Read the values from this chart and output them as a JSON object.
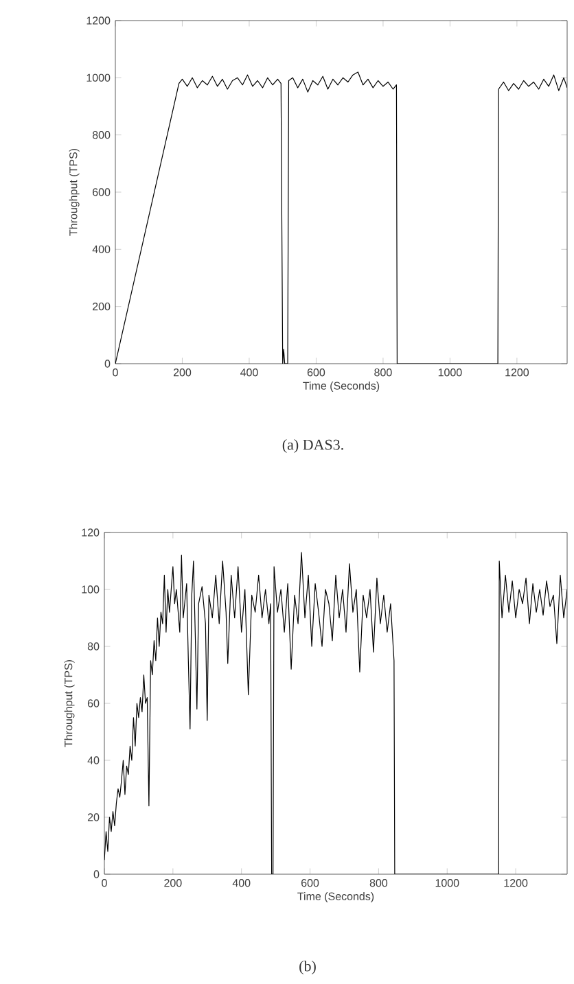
{
  "chart_data": [
    {
      "type": "line",
      "xlabel": "Time (Seconds)",
      "ylabel": "Throughput (TPS)",
      "annotations": [
        "(a)  DAS3."
      ],
      "color": "#000000",
      "xlim": [
        0,
        1350
      ],
      "ylim": [
        0,
        1200
      ],
      "xticks": [
        0,
        200,
        400,
        600,
        800,
        1000,
        1200
      ],
      "yticks": [
        0,
        200,
        400,
        600,
        800,
        1000,
        1200
      ],
      "x": [
        0,
        190,
        200,
        215,
        230,
        245,
        260,
        275,
        290,
        305,
        320,
        335,
        350,
        365,
        380,
        395,
        410,
        425,
        440,
        455,
        470,
        485,
        495,
        500,
        503,
        506,
        515,
        518,
        530,
        545,
        560,
        575,
        590,
        605,
        620,
        635,
        650,
        665,
        680,
        695,
        710,
        725,
        740,
        755,
        770,
        785,
        800,
        815,
        830,
        840,
        842,
        1143,
        1145,
        1160,
        1175,
        1190,
        1205,
        1220,
        1235,
        1250,
        1265,
        1280,
        1295,
        1310,
        1325,
        1340,
        1350
      ],
      "values": [
        0,
        980,
        995,
        970,
        1000,
        965,
        990,
        975,
        1005,
        970,
        995,
        960,
        990,
        1000,
        975,
        1010,
        970,
        990,
        965,
        1000,
        975,
        995,
        980,
        0,
        50,
        0,
        0,
        990,
        1000,
        965,
        995,
        950,
        990,
        975,
        1005,
        960,
        995,
        975,
        1000,
        985,
        1010,
        1020,
        975,
        995,
        965,
        990,
        970,
        985,
        960,
        975,
        0,
        0,
        960,
        985,
        955,
        980,
        960,
        990,
        970,
        985,
        960,
        995,
        970,
        1010,
        955,
        1000,
        965
      ]
    },
    {
      "type": "line",
      "xlabel": "Time (Seconds)",
      "ylabel": "Throughput (TPS)",
      "annotations": [
        "(b)"
      ],
      "color": "#000000",
      "xlim": [
        0,
        1350
      ],
      "ylim": [
        0,
        120
      ],
      "xticks": [
        0,
        200,
        400,
        600,
        800,
        1000,
        1200
      ],
      "yticks": [
        0,
        20,
        40,
        60,
        80,
        100,
        120
      ],
      "x": [
        0,
        5,
        10,
        15,
        20,
        25,
        30,
        35,
        40,
        45,
        50,
        55,
        60,
        65,
        70,
        75,
        80,
        85,
        90,
        95,
        100,
        105,
        110,
        115,
        120,
        125,
        130,
        135,
        140,
        145,
        150,
        155,
        160,
        165,
        170,
        175,
        180,
        185,
        190,
        200,
        205,
        210,
        220,
        225,
        230,
        240,
        245,
        250,
        255,
        260,
        265,
        270,
        275,
        285,
        295,
        300,
        305,
        315,
        325,
        335,
        345,
        355,
        360,
        370,
        380,
        390,
        400,
        410,
        420,
        430,
        440,
        450,
        460,
        470,
        480,
        485,
        488,
        492,
        495,
        505,
        515,
        525,
        535,
        545,
        555,
        565,
        575,
        585,
        595,
        605,
        615,
        625,
        635,
        645,
        655,
        665,
        675,
        685,
        695,
        705,
        715,
        725,
        735,
        745,
        755,
        765,
        775,
        785,
        795,
        805,
        815,
        825,
        835,
        845,
        847,
        1150,
        1152,
        1160,
        1170,
        1180,
        1190,
        1200,
        1210,
        1220,
        1230,
        1240,
        1250,
        1260,
        1270,
        1280,
        1290,
        1300,
        1310,
        1320,
        1330,
        1340,
        1350
      ],
      "values": [
        5,
        15,
        8,
        20,
        15,
        22,
        17,
        25,
        30,
        27,
        33,
        40,
        28,
        38,
        35,
        45,
        40,
        55,
        45,
        60,
        55,
        62,
        57,
        70,
        60,
        62,
        24,
        75,
        70,
        82,
        75,
        90,
        80,
        92,
        88,
        105,
        85,
        100,
        92,
        108,
        95,
        100,
        85,
        112,
        90,
        102,
        75,
        51,
        98,
        110,
        85,
        58,
        95,
        101,
        88,
        54,
        98,
        90,
        105,
        88,
        110,
        92,
        74,
        105,
        90,
        108,
        85,
        100,
        63,
        98,
        92,
        105,
        90,
        100,
        88,
        95,
        0,
        0,
        108,
        92,
        100,
        85,
        102,
        72,
        98,
        88,
        113,
        90,
        105,
        80,
        102,
        92,
        80,
        100,
        95,
        82,
        105,
        90,
        100,
        85,
        109,
        92,
        100,
        71,
        98,
        90,
        100,
        78,
        104,
        88,
        98,
        85,
        95,
        75,
        0,
        0,
        110,
        90,
        105,
        92,
        103,
        90,
        100,
        95,
        104,
        88,
        102,
        92,
        100,
        91,
        103,
        94,
        98,
        81,
        105,
        90,
        100
      ]
    }
  ]
}
